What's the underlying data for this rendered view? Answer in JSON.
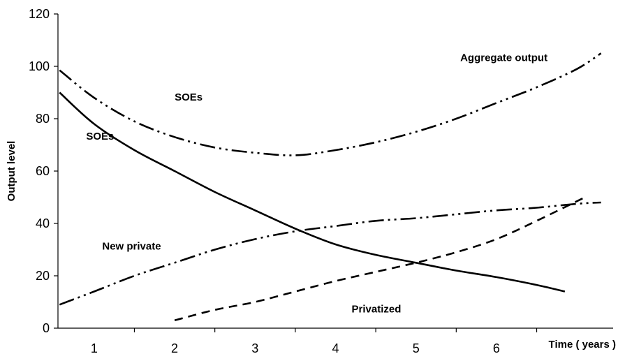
{
  "chart_data": {
    "type": "line",
    "xlabel": "Time ( years )",
    "ylabel": "Output level",
    "xlim": [
      0.55,
      7.45
    ],
    "ylim": [
      0,
      120
    ],
    "yticks": [
      0,
      20,
      40,
      60,
      80,
      100,
      120
    ],
    "xticks": [
      1,
      2,
      3,
      4,
      5,
      6
    ],
    "category_labels": [
      "1",
      "2",
      "3",
      "4",
      "5",
      "6"
    ],
    "grid": false,
    "series": [
      {
        "label_name": "soes-line",
        "dash": "none",
        "x": [
          0.57,
          1.0,
          1.5,
          2.0,
          2.5,
          3.0,
          3.5,
          4.0,
          4.5,
          5.0,
          5.5,
          6.0,
          6.5,
          6.85
        ],
        "y": [
          90,
          78,
          68,
          60,
          52,
          45,
          38,
          32,
          28,
          25,
          22,
          19.5,
          16.5,
          14
        ]
      },
      {
        "label_name": "aggregate-output-line",
        "dash": "22,6,3,6,3,6",
        "x": [
          0.57,
          1.0,
          1.5,
          2.0,
          2.5,
          3.0,
          3.5,
          4.0,
          4.5,
          5.0,
          5.5,
          6.0,
          6.5,
          7.0,
          7.3
        ],
        "y": [
          98.5,
          88,
          79,
          73,
          69,
          67,
          66,
          68,
          71,
          75,
          80,
          86,
          92,
          99,
          105
        ]
      },
      {
        "label_name": "new-private-line",
        "dash": "22,6,3,6,3,6",
        "x": [
          0.57,
          1.0,
          1.5,
          2.0,
          2.5,
          3.0,
          3.5,
          4.0,
          4.5,
          5.0,
          5.5,
          6.0,
          6.5,
          7.0,
          7.3
        ],
        "y": [
          9,
          14,
          20,
          25,
          30,
          34,
          37,
          39,
          41,
          42,
          43.5,
          45,
          46,
          47.5,
          48
        ]
      },
      {
        "label_name": "privatized-line",
        "dash": "12,8",
        "x": [
          2.0,
          2.5,
          3.0,
          3.5,
          4.0,
          4.5,
          5.0,
          5.5,
          6.0,
          6.5,
          7.1
        ],
        "y": [
          3,
          7,
          10,
          14,
          18,
          21.5,
          25,
          29,
          34,
          41,
          50
        ]
      }
    ],
    "annotations": [
      {
        "text": "Aggregate output",
        "x": 5.55,
        "y": 102
      },
      {
        "text": "SOEs",
        "x": 2.0,
        "y": 87
      },
      {
        "text": "SOEs",
        "x": 0.9,
        "y": 72
      },
      {
        "text": "New private",
        "x": 1.1,
        "y": 30
      },
      {
        "text": "Privatized",
        "x": 4.2,
        "y": 6
      }
    ]
  }
}
